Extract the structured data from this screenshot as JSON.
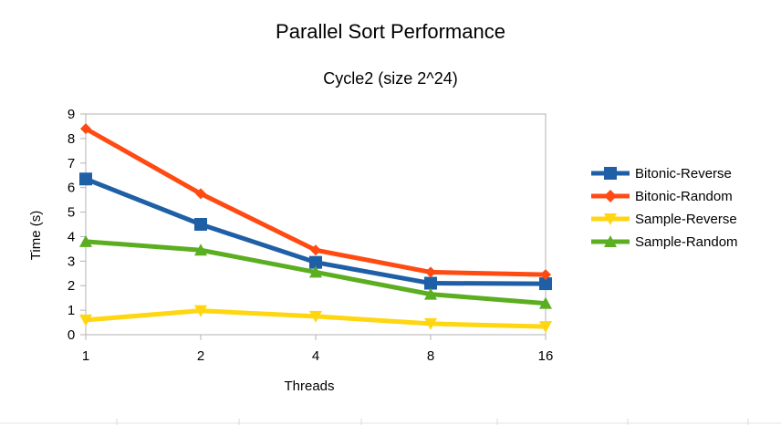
{
  "chart_data": {
    "type": "line",
    "title": "Parallel Sort Performance",
    "subtitle": "Cycle2 (size 2^24)",
    "xlabel": "Threads",
    "ylabel": "Time (s)",
    "categories": [
      "1",
      "2",
      "4",
      "8",
      "16"
    ],
    "ylim": [
      0,
      9
    ],
    "yticks": [
      0,
      1,
      2,
      3,
      4,
      5,
      6,
      7,
      8,
      9
    ],
    "grid": false,
    "legend_position": "right",
    "series": [
      {
        "name": "Bitonic-Reverse",
        "color": "#1f5fa6",
        "marker": "square",
        "values": [
          6.35,
          4.5,
          2.95,
          2.1,
          2.08
        ]
      },
      {
        "name": "Bitonic-Random",
        "color": "#ff4a12",
        "marker": "diamond",
        "values": [
          8.4,
          5.75,
          3.45,
          2.55,
          2.45
        ]
      },
      {
        "name": "Sample-Reverse",
        "color": "#ffd60f",
        "marker": "triangle-down",
        "values": [
          0.6,
          0.98,
          0.75,
          0.45,
          0.33
        ]
      },
      {
        "name": "Sample-Random",
        "color": "#5aae1f",
        "marker": "triangle-up",
        "values": [
          3.8,
          3.45,
          2.55,
          1.65,
          1.28
        ]
      }
    ]
  }
}
